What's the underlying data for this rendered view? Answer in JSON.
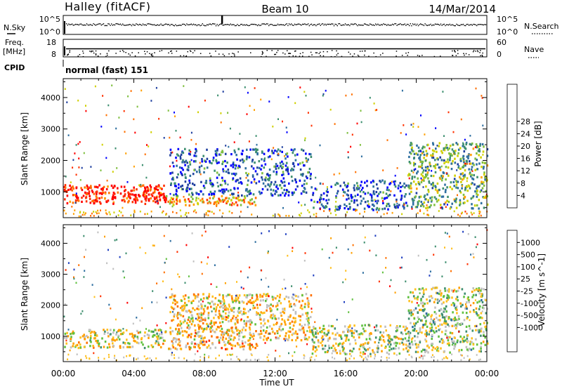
{
  "header": {
    "station": "Halley (fitACF)",
    "beam": "Beam 10",
    "date": "14/Mar/2014"
  },
  "strips": {
    "nsky_label": "N.Sky",
    "nsky_ticks": [
      "10^5",
      "10^0"
    ],
    "nsearch_label": "N.Search",
    "nsearch_ticks": [
      "10^5",
      "10^0"
    ],
    "freq_label_1": "Freq.",
    "freq_label_2": "[MHz]",
    "freq_ticks": [
      "18",
      "8"
    ],
    "nave_label": "Nave",
    "nave_ticks": [
      "60",
      "0"
    ],
    "cpid_label": "CPID",
    "cpid_value": "normal (fast) 151"
  },
  "chart_data": [
    {
      "type": "heatmap",
      "title": "",
      "xlabel": "Time UT",
      "ylabel": "Slant Range [km]",
      "x_ticks": [
        "00:00",
        "04:00",
        "08:00",
        "12:00",
        "16:00",
        "20:00",
        "00:00"
      ],
      "x_range_hours": [
        0,
        24
      ],
      "y_ticks": [
        1000,
        2000,
        3000,
        4000
      ],
      "ylim": [
        180,
        4600
      ],
      "colorbar": {
        "label": "Power [dB]",
        "ticks": [
          "4",
          "8",
          "12",
          "16",
          "20",
          "24",
          "28"
        ],
        "colors": [
          "#0000ff",
          "#1f3f9f",
          "#2e6fa0",
          "#3d8f6f",
          "#7fbf3f",
          "#d0d000",
          "#ffa000",
          "#ff7000",
          "#ff3000",
          "#ff0000"
        ]
      },
      "bands": [
        {
          "t0": 0.0,
          "t1": 5.8,
          "r0": 650,
          "r1": 1250,
          "level": 0.9
        },
        {
          "t0": 5.8,
          "t1": 11.0,
          "r0": 600,
          "r1": 900,
          "level": 0.65
        },
        {
          "t0": 6.0,
          "t1": 14.0,
          "r0": 900,
          "r1": 2400,
          "level": 0.2
        },
        {
          "t0": 14.0,
          "t1": 19.5,
          "r0": 450,
          "r1": 1400,
          "level": 0.2
        },
        {
          "t0": 19.5,
          "t1": 24.0,
          "r0": 500,
          "r1": 2600,
          "level": 0.4
        }
      ]
    },
    {
      "type": "heatmap",
      "title": "",
      "xlabel": "Time UT",
      "ylabel": "Slant Range [km]",
      "x_ticks": [
        "00:00",
        "04:00",
        "08:00",
        "12:00",
        "16:00",
        "20:00",
        "00:00"
      ],
      "x_range_hours": [
        0,
        24
      ],
      "y_ticks": [
        1000,
        2000,
        3000,
        4000
      ],
      "ylim": [
        180,
        4600
      ],
      "colorbar": {
        "label": "Velocity [m s^-1]",
        "ticks": [
          "1000",
          "500",
          "100",
          "25",
          "-25",
          "-100",
          "-500",
          "-1000"
        ],
        "colors": [
          "#2040c0",
          "#2f6fa0",
          "#3f8f6f",
          "#60c040",
          "#c0c0c0",
          "#ffc020",
          "#ffa000",
          "#ff7000",
          "#ff3000",
          "#ff0000"
        ]
      },
      "bands": [
        {
          "t0": 0.0,
          "t1": 5.8,
          "r0": 650,
          "r1": 1250,
          "level": 0.5
        },
        {
          "t0": 5.8,
          "t1": 11.0,
          "r0": 600,
          "r1": 900,
          "level": 0.6
        },
        {
          "t0": 6.0,
          "t1": 14.0,
          "r0": 900,
          "r1": 2400,
          "level": 0.55
        },
        {
          "t0": 14.0,
          "t1": 19.5,
          "r0": 450,
          "r1": 1400,
          "level": 0.45
        },
        {
          "t0": 19.5,
          "t1": 24.0,
          "r0": 500,
          "r1": 2600,
          "level": 0.4
        }
      ]
    }
  ]
}
